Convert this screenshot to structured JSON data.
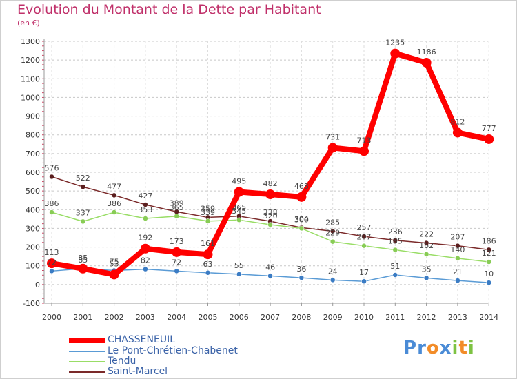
{
  "title": "Evolution du Montant de la Dette par Habitant",
  "unit_label": "(en €)",
  "logo": {
    "text": "Proxiti",
    "letters": [
      "P",
      "r",
      "o",
      "x",
      "i",
      "t",
      "i"
    ],
    "colors": [
      "#4a8bd6",
      "#4a8bd6",
      "#f28c28",
      "#4a8bd6",
      "#7dc242",
      "#f28c28",
      "#7dc242"
    ]
  },
  "chart_data": {
    "type": "line",
    "x": [
      "2000",
      "2001",
      "2002",
      "2003",
      "2004",
      "2005",
      "2006",
      "2007",
      "2008",
      "2009",
      "2010",
      "2011",
      "2012",
      "2013",
      "2014"
    ],
    "ylim": [
      -100,
      1300
    ],
    "yticks": [
      "-100",
      "0",
      "100",
      "200",
      "300",
      "400",
      "500",
      "600",
      "700",
      "800",
      "900",
      "1000",
      "1100",
      "1200",
      "1300"
    ],
    "grid": "dashed horizontal",
    "legend_position": "bottom-left",
    "series": [
      {
        "name": "CHASSENEUIL",
        "color": "#ff0000",
        "values": [
          113,
          85,
          53,
          192,
          173,
          161,
          495,
          482,
          468,
          731,
          713,
          1235,
          1186,
          812,
          777
        ],
        "labels": [
          "113",
          "85",
          "53",
          "192",
          "173",
          "161",
          "495",
          "482",
          "468",
          "731",
          "713",
          "1235",
          "1186",
          "812",
          "777"
        ]
      },
      {
        "name": "Le Pont-Chrétien-Chabenet",
        "color": "#5a9bd5",
        "values": [
          72,
          85,
          75,
          82,
          72,
          63,
          55,
          46,
          36,
          24,
          17,
          51,
          35,
          21,
          10
        ],
        "labels": [
          "72",
          "85",
          "75",
          "82",
          "72",
          "63",
          "55",
          "46",
          "36",
          "24",
          "17",
          "51",
          "35",
          "21",
          "10"
        ]
      },
      {
        "name": "Tendu",
        "color": "#99dd66",
        "values": [
          386,
          337,
          386,
          353,
          365,
          339,
          345,
          320,
          300,
          229,
          207,
          185,
          162,
          140,
          121
        ],
        "labels": [
          "386",
          "337",
          "386",
          "353",
          "365",
          "339",
          "345",
          "320",
          "300",
          "229",
          "207",
          "185",
          "162",
          "140",
          "121"
        ]
      },
      {
        "name": "Saint-Marcel",
        "color": "#7b2a2a",
        "values": [
          576,
          522,
          477,
          427,
          389,
          359,
          365,
          338,
          304,
          285,
          257,
          236,
          222,
          207,
          186
        ],
        "labels": [
          "576",
          "522",
          "477",
          "427",
          "389",
          "359",
          "365",
          "338",
          "304",
          "285",
          "257",
          "236",
          "222",
          "207",
          "186"
        ]
      }
    ]
  }
}
